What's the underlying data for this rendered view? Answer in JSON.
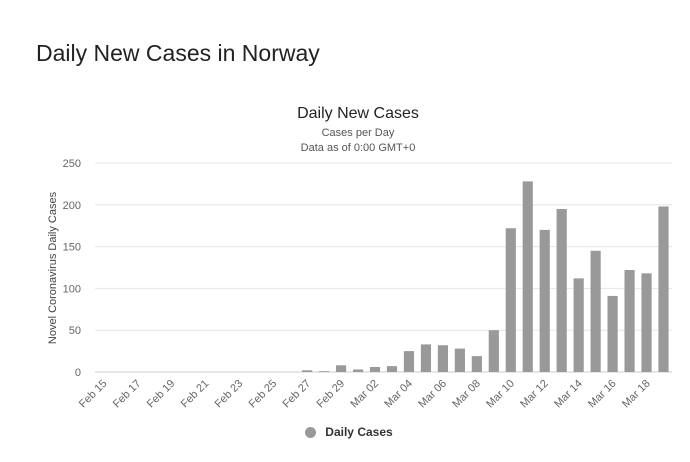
{
  "page": {
    "title": "Daily New Cases in Norway"
  },
  "colors": {
    "bar": "#999999",
    "grid": "#e6e6e6",
    "text": "#333333",
    "axis_text": "#666666"
  },
  "chart_data": {
    "type": "bar",
    "title": "Daily New Cases",
    "subtitle_lines": [
      "Cases per Day",
      "Data as of 0:00 GMT+0"
    ],
    "ylabel": "Novel Coronavirus Daily Cases",
    "xlabel": "",
    "ylim": [
      0,
      250
    ],
    "yticks": [
      0,
      50,
      100,
      150,
      200,
      250
    ],
    "grid": true,
    "legend_position": "bottom-center",
    "categories": [
      "Feb 15",
      "Feb 16",
      "Feb 17",
      "Feb 18",
      "Feb 19",
      "Feb 20",
      "Feb 21",
      "Feb 22",
      "Feb 23",
      "Feb 24",
      "Feb 25",
      "Feb 26",
      "Feb 27",
      "Feb 28",
      "Feb 29",
      "Mar 01",
      "Mar 02",
      "Mar 03",
      "Mar 04",
      "Mar 05",
      "Mar 06",
      "Mar 07",
      "Mar 08",
      "Mar 09",
      "Mar 10",
      "Mar 11",
      "Mar 12",
      "Mar 13",
      "Mar 14",
      "Mar 15",
      "Mar 16",
      "Mar 17",
      "Mar 18",
      "Mar 19"
    ],
    "tick_labels": [
      "Feb 15",
      "Feb 17",
      "Feb 19",
      "Feb 21",
      "Feb 23",
      "Feb 25",
      "Feb 27",
      "Feb 29",
      "Mar 02",
      "Mar 04",
      "Mar 06",
      "Mar 08",
      "Mar 10",
      "Mar 12",
      "Mar 14",
      "Mar 16",
      "Mar 18"
    ],
    "series": [
      {
        "name": "Daily Cases",
        "values": [
          0,
          0,
          0,
          0,
          0,
          0,
          0,
          0,
          0,
          0,
          0,
          0,
          2,
          1,
          8,
          3,
          6,
          7,
          25,
          33,
          32,
          28,
          19,
          50,
          172,
          228,
          170,
          195,
          112,
          145,
          91,
          122,
          118,
          198
        ]
      }
    ]
  }
}
